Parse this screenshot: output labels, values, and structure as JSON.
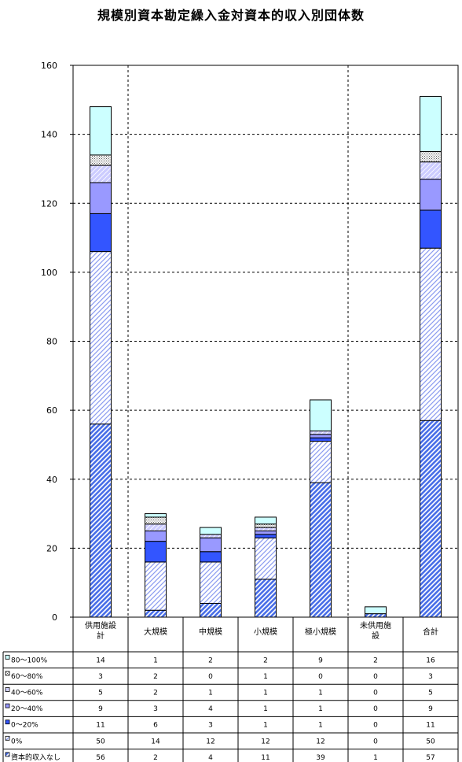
{
  "chart_data": {
    "type": "bar",
    "stacked": true,
    "title": "規模別資本勘定繰入金対資本的収入別団体数",
    "categories": [
      [
        "供用施設",
        "計"
      ],
      [
        "大規模"
      ],
      [
        "中規模"
      ],
      [
        "小規模"
      ],
      [
        "極小規模"
      ],
      [
        "未供用施",
        "設"
      ],
      [
        "合計"
      ]
    ],
    "ylim": [
      0,
      160
    ],
    "yticks": [
      0,
      20,
      40,
      60,
      80,
      100,
      120,
      140,
      160
    ],
    "grid": false,
    "series": [
      {
        "name": "資本的収入なし",
        "values": [
          56,
          2,
          4,
          11,
          39,
          1,
          57
        ],
        "color": "#4a6fe8",
        "pattern": "hatch-dense"
      },
      {
        "name": "0%",
        "values": [
          50,
          14,
          12,
          12,
          12,
          0,
          50
        ],
        "color": "#8a9af0",
        "pattern": "hatch-light"
      },
      {
        "name": "0～20%",
        "values": [
          11,
          6,
          3,
          1,
          1,
          0,
          11
        ],
        "color": "#3355ff",
        "pattern": "solid"
      },
      {
        "name": "20～40%",
        "values": [
          9,
          3,
          4,
          1,
          1,
          0,
          9
        ],
        "color": "#9999ff",
        "pattern": "solid"
      },
      {
        "name": "40～60%",
        "values": [
          5,
          2,
          1,
          1,
          1,
          0,
          5
        ],
        "color": "#ccccff",
        "pattern": "diag"
      },
      {
        "name": "60～80%",
        "values": [
          3,
          2,
          0,
          1,
          0,
          0,
          3
        ],
        "color": "#e8e8f8",
        "pattern": "dots"
      },
      {
        "name": "80～100%",
        "values": [
          14,
          1,
          2,
          2,
          9,
          2,
          16
        ],
        "color": "#ccffff",
        "pattern": "solid"
      }
    ],
    "table_rows_order": [
      "80～100%",
      "60～80%",
      "40～60%",
      "20～40%",
      "0～20%",
      "0%",
      "資本的収入なし"
    ],
    "vertical_dividers_after_categories": [
      0,
      4
    ]
  }
}
